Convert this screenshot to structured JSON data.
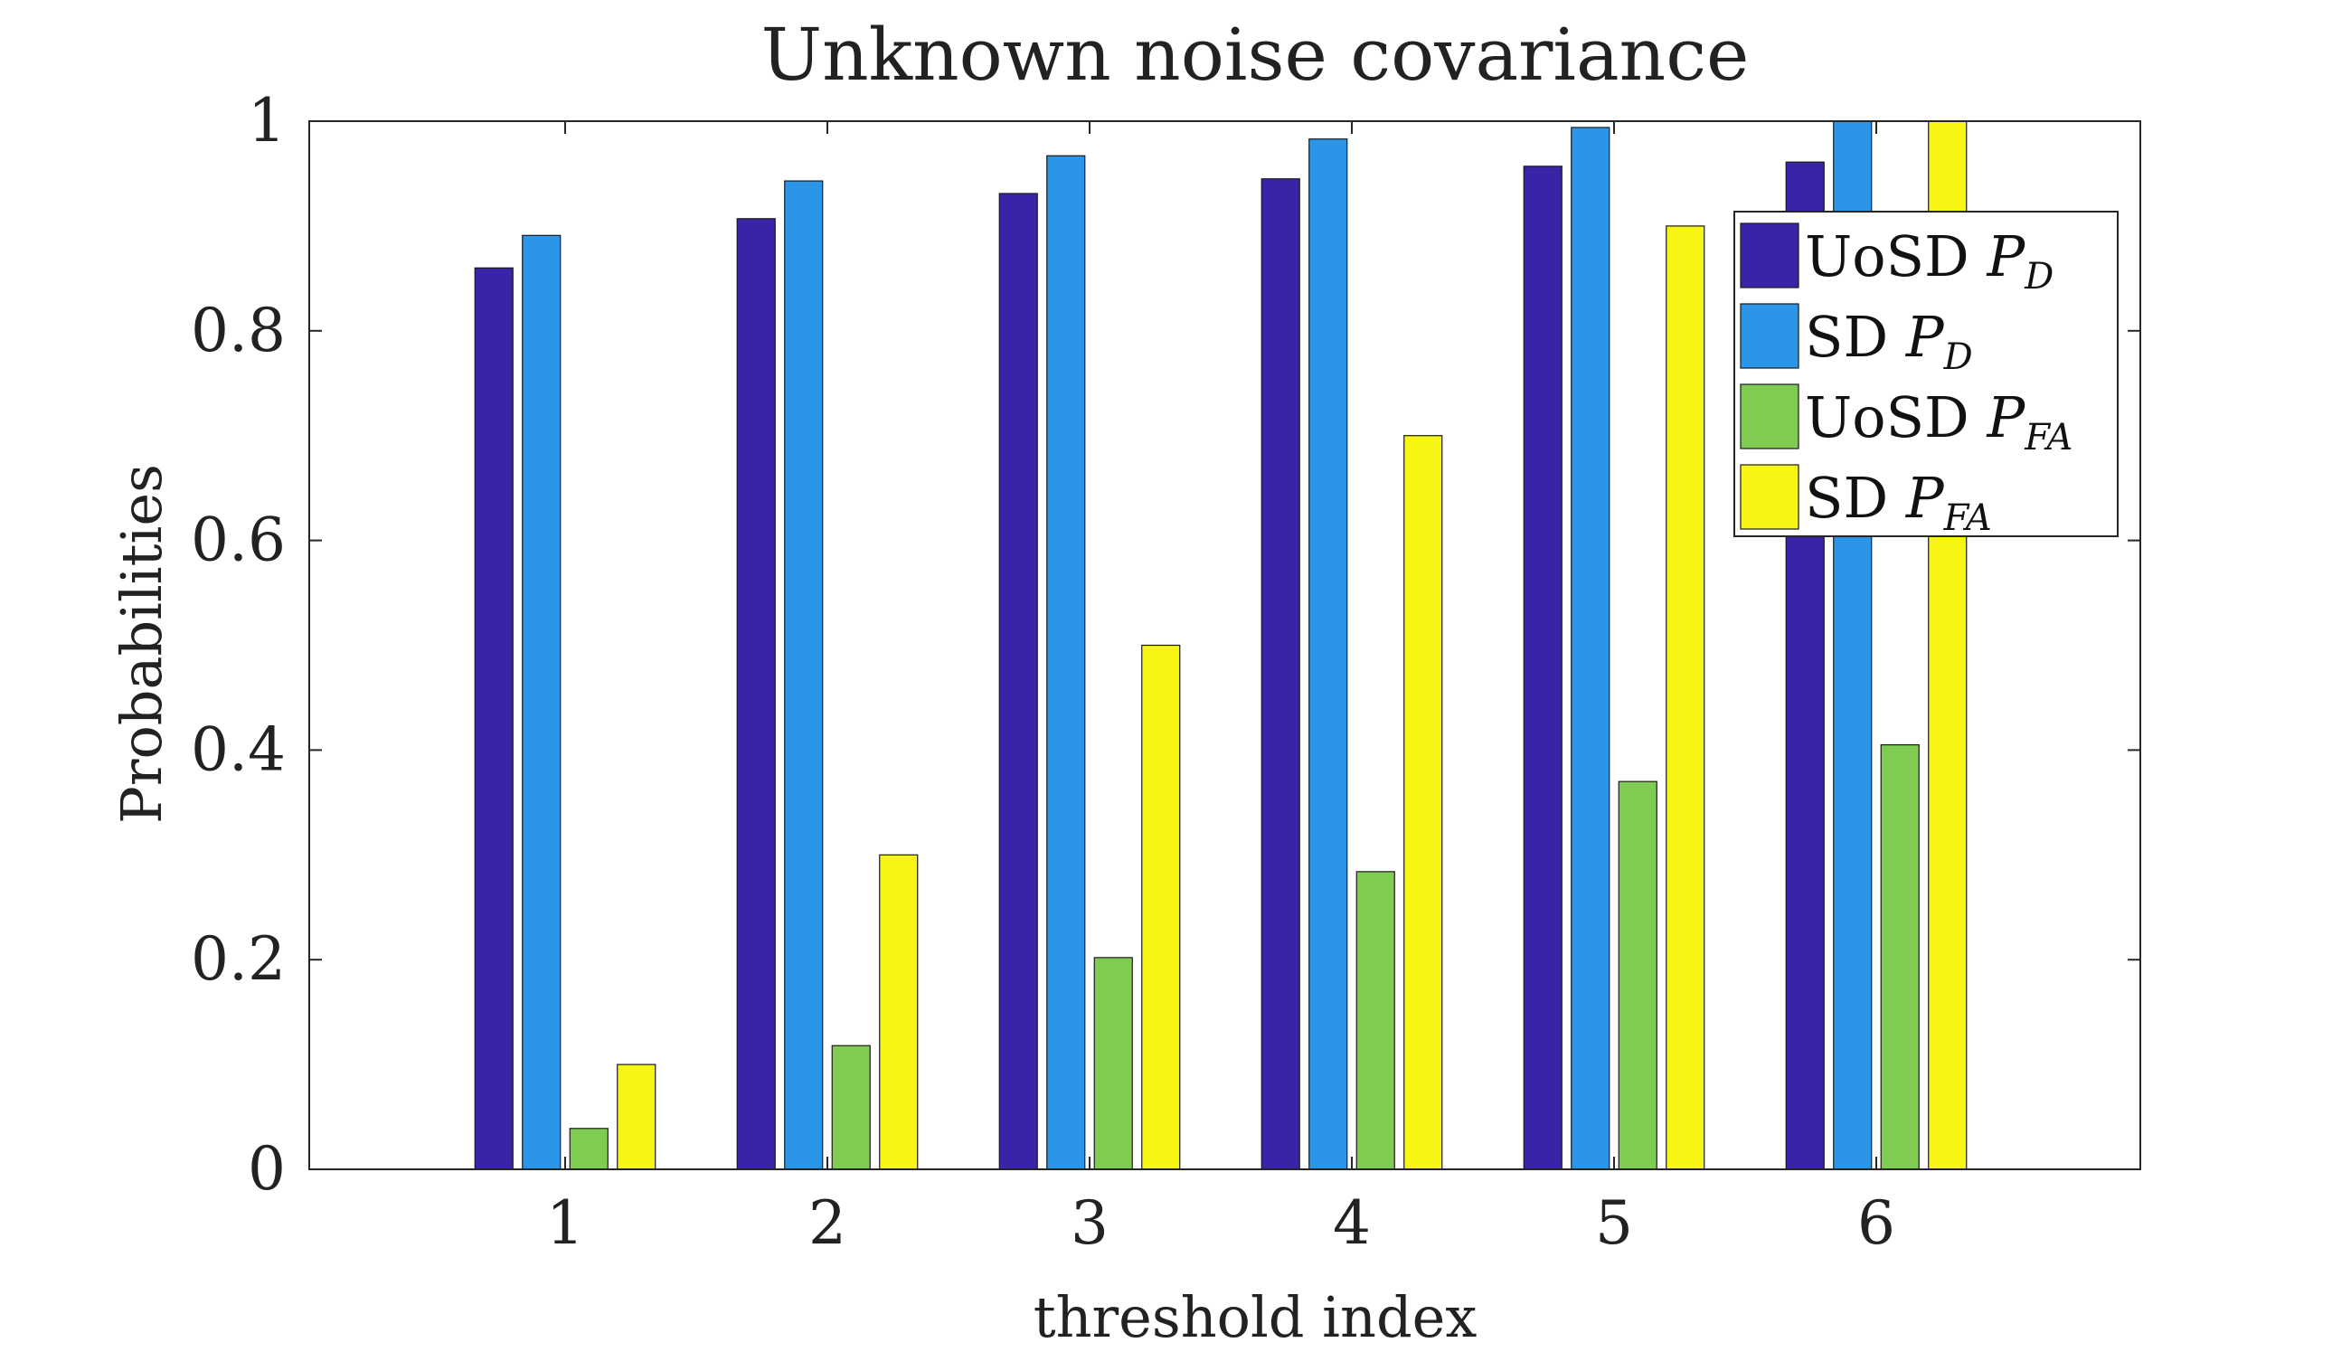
{
  "chart_data": {
    "type": "bar",
    "title": "Unknown noise covariance",
    "xlabel": "threshold index",
    "ylabel": "Probabilities",
    "categories": [
      "1",
      "2",
      "3",
      "4",
      "5",
      "6"
    ],
    "ylim": [
      0,
      1
    ],
    "yticks": [
      "0",
      "0.2",
      "0.4",
      "0.6",
      "0.8",
      "1"
    ],
    "legend_position": "top-right",
    "series": [
      {
        "name": "UoSD",
        "symbol": "P",
        "subscript": "D",
        "color": "#3b23a8",
        "values": [
          0.86,
          0.907,
          0.931,
          0.945,
          0.957,
          0.961
        ]
      },
      {
        "name": "SD",
        "symbol": "P",
        "subscript": "D",
        "color": "#2b95e8",
        "values": [
          0.891,
          0.943,
          0.967,
          0.983,
          0.994,
          1.0
        ]
      },
      {
        "name": "UoSD",
        "symbol": "P",
        "subscript": "FA",
        "color": "#80cc52",
        "values": [
          0.039,
          0.118,
          0.202,
          0.284,
          0.37,
          0.405
        ]
      },
      {
        "name": "SD",
        "symbol": "P",
        "subscript": "FA",
        "color": "#f6f514",
        "values": [
          0.1,
          0.3,
          0.5,
          0.7,
          0.9,
          1.0
        ]
      }
    ]
  }
}
